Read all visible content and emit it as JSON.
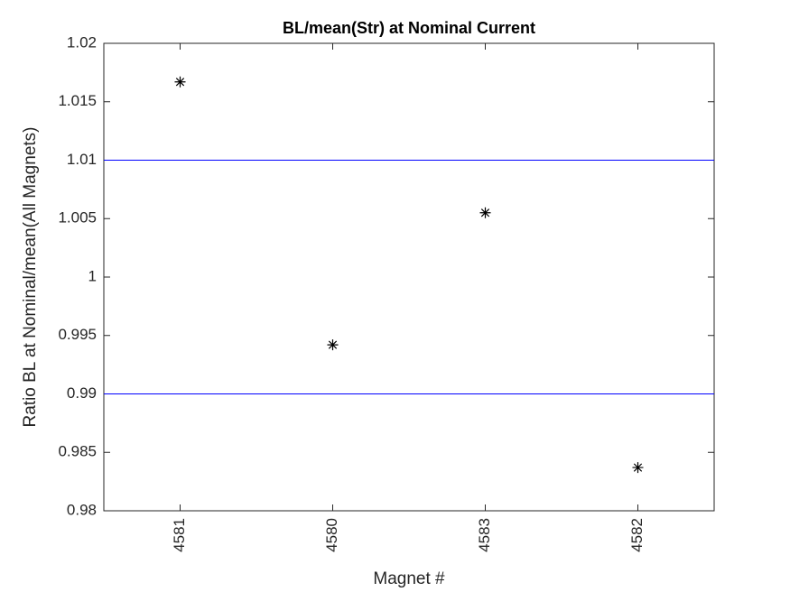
{
  "chart_data": {
    "type": "scatter",
    "title": "BL/mean(Str) at Nominal Current",
    "x_label": "Magnet #",
    "y_label": "Ratio BL at Nominal/mean(All Magnets)",
    "categories": [
      "4581",
      "4580",
      "4583",
      "4582"
    ],
    "values": [
      1.0167,
      0.9942,
      1.0055,
      0.9837
    ],
    "color": "#000000",
    "marker": "*",
    "reference_lines": [
      1.01,
      0.99
    ],
    "reference_color": "#0000ff",
    "ylim": [
      0.98,
      1.02
    ],
    "yticks": [
      0.98,
      0.985,
      0.99,
      0.995,
      1,
      1.005,
      1.01,
      1.015,
      1.02
    ],
    "grid": false
  }
}
